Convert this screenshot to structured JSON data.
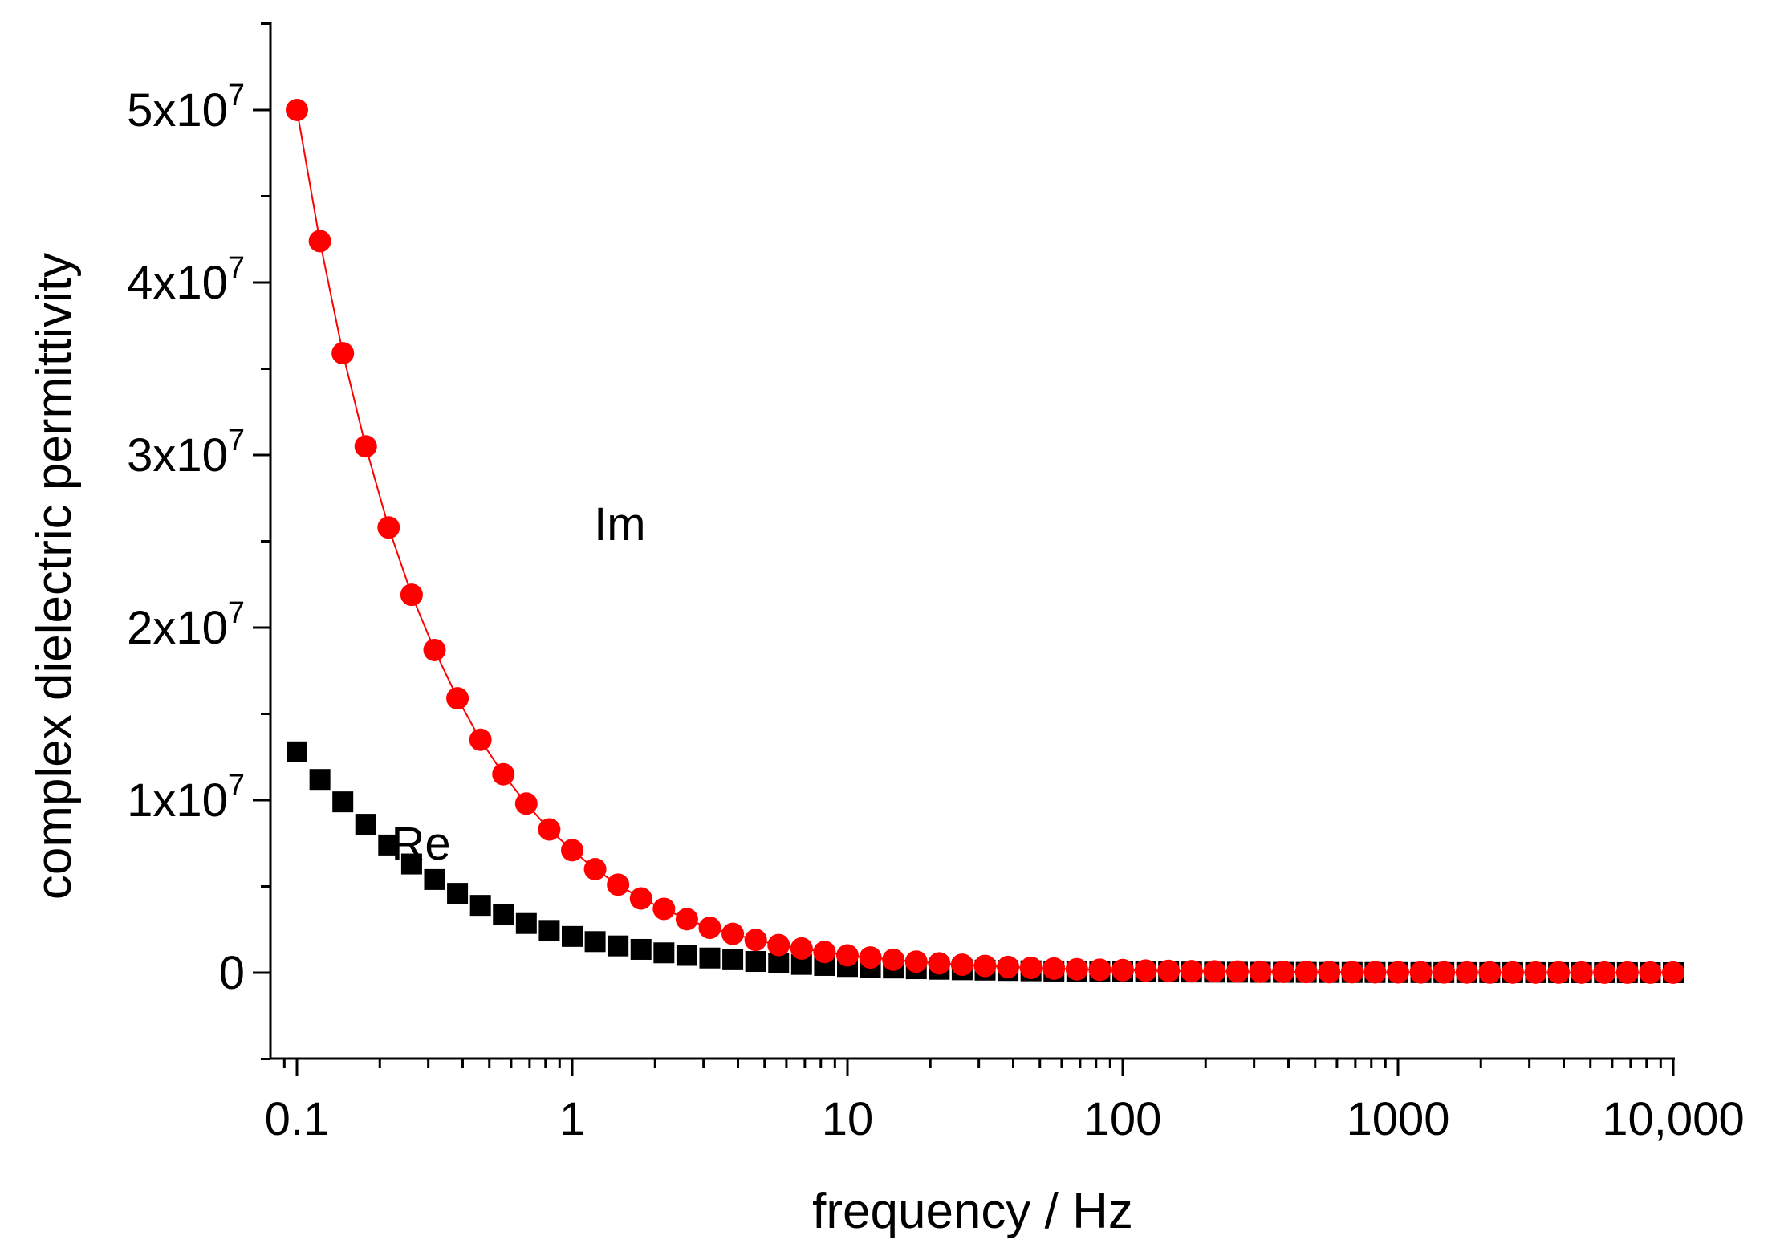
{
  "chart_data": {
    "type": "scatter",
    "title": "",
    "xlabel": "frequency / Hz",
    "ylabel": "complex dielectric permittivity",
    "x_scale": "log",
    "xlim": [
      0.08,
      10000
    ],
    "ylim": [
      -5000000,
      55000000
    ],
    "x_ticks": [
      {
        "value": 0.1,
        "label": "0.1"
      },
      {
        "value": 1,
        "label": "1"
      },
      {
        "value": 10,
        "label": "10"
      },
      {
        "value": 100,
        "label": "100"
      },
      {
        "value": 1000,
        "label": "1000"
      },
      {
        "value": 10000,
        "label": "10,000"
      }
    ],
    "y_ticks": [
      {
        "value": 0,
        "mantissa": "0",
        "exponent": ""
      },
      {
        "value": 10000000,
        "mantissa": "1x10",
        "exponent": "7"
      },
      {
        "value": 20000000,
        "mantissa": "2x10",
        "exponent": "7"
      },
      {
        "value": 30000000,
        "mantissa": "3x10",
        "exponent": "7"
      },
      {
        "value": 40000000,
        "mantissa": "4x10",
        "exponent": "7"
      },
      {
        "value": 50000000,
        "mantissa": "5x10",
        "exponent": "7"
      }
    ],
    "grid": false,
    "legend": "none",
    "annotations": [
      {
        "text": "Im",
        "series": "Im",
        "x": 1.2,
        "y": 26000000
      },
      {
        "text": "Re",
        "series": "Re",
        "x": 0.22,
        "y": 7500000
      }
    ],
    "series": [
      {
        "name": "Im",
        "marker": "circle",
        "color": "#ff0000",
        "line": true,
        "x": [
          0.1,
          0.1212,
          0.1468,
          0.1778,
          0.2154,
          0.261,
          0.3162,
          0.3831,
          0.4642,
          0.5623,
          0.6813,
          0.8254,
          1.0,
          1.2115,
          1.4678,
          1.7783,
          2.1544,
          2.6102,
          3.1623,
          3.8312,
          4.6416,
          5.6234,
          6.8129,
          8.254,
          10.0,
          12.115,
          14.678,
          17.783,
          21.544,
          26.102,
          31.623,
          38.312,
          46.416,
          56.234,
          68.129,
          82.54,
          100.0,
          121.15,
          146.78,
          177.83,
          215.44,
          261.02,
          316.23,
          383.12,
          464.16,
          562.34,
          681.29,
          825.4,
          1000.0,
          1211.5,
          1467.8,
          1778.3,
          2154.4,
          2610.2,
          3162.3,
          3831.2,
          4641.6,
          5623.4,
          6812.9,
          8254.0,
          10000.0
        ],
        "y": [
          50000000,
          42400000,
          35900000,
          30500000,
          25800000,
          21900000,
          18700000,
          15900000,
          13500000,
          11500000,
          9800000,
          8300000,
          7100000,
          6000000,
          5100000,
          4300000,
          3700000,
          3100000,
          2600000,
          2250000,
          1900000,
          1600000,
          1400000,
          1200000,
          1000000,
          880000,
          750000,
          640000,
          540000,
          460000,
          390000,
          330000,
          280000,
          240000,
          200000,
          170000,
          150000,
          125000,
          105000,
          90000,
          77000,
          65000,
          55000,
          47000,
          40000,
          34000,
          29000,
          25000,
          21000,
          18000,
          15000,
          13000,
          11000,
          9000,
          8000,
          7000,
          6000,
          5000,
          4000,
          3500,
          3000
        ]
      },
      {
        "name": "Re",
        "marker": "square",
        "color": "#000000",
        "line": false,
        "x": [
          0.1,
          0.1212,
          0.1468,
          0.1778,
          0.2154,
          0.261,
          0.3162,
          0.3831,
          0.4642,
          0.5623,
          0.6813,
          0.8254,
          1.0,
          1.2115,
          1.4678,
          1.7783,
          2.1544,
          2.6102,
          3.1623,
          3.8312,
          4.6416,
          5.6234,
          6.8129,
          8.254,
          10.0,
          12.115,
          14.678,
          17.783,
          21.544,
          26.102,
          31.623,
          38.312,
          46.416,
          56.234,
          68.129,
          82.54,
          100.0,
          121.15,
          146.78,
          177.83,
          215.44,
          261.02,
          316.23,
          383.12,
          464.16,
          562.34,
          681.29,
          825.4,
          1000.0,
          1211.5,
          1467.8,
          1778.3,
          2154.4,
          2610.2,
          3162.3,
          3831.2,
          4641.6,
          5623.4,
          6812.9,
          8254.0,
          10000.0
        ],
        "y": [
          12800000,
          11200000,
          9900000,
          8600000,
          7400000,
          6300000,
          5400000,
          4600000,
          3900000,
          3350000,
          2850000,
          2450000,
          2100000,
          1800000,
          1550000,
          1350000,
          1150000,
          1000000,
          850000,
          750000,
          650000,
          560000,
          480000,
          420000,
          360000,
          310000,
          270000,
          230000,
          200000,
          170000,
          150000,
          130000,
          110000,
          95000,
          82000,
          70000,
          60000,
          52000,
          45000,
          39000,
          33000,
          28000,
          24000,
          21000,
          18000,
          15000,
          13000,
          11000,
          9500,
          8000,
          7000,
          6000,
          5000,
          4500,
          4000,
          3500,
          3000,
          2500,
          2000,
          1800,
          1500
        ]
      }
    ]
  }
}
